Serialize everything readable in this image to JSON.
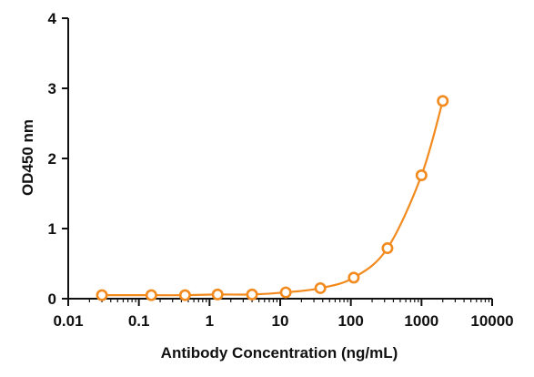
{
  "chart_data": {
    "type": "scatter",
    "title": "",
    "xlabel": "Antibody Concentration (ng/mL)",
    "ylabel": "OD450 nm",
    "xscale": "log",
    "xlim": [
      0.01,
      10000
    ],
    "ylim": [
      0,
      4
    ],
    "xticks": [
      "0.01",
      "0.1",
      "1",
      "10",
      "100",
      "1000",
      "10000"
    ],
    "yticks": [
      "0",
      "1",
      "2",
      "3",
      "4"
    ],
    "grid": false,
    "legend": "none",
    "fitted_curve": true,
    "color": "#f28a1e",
    "series": [
      {
        "x": [
          0.03,
          0.15,
          0.45,
          1.3,
          4.0,
          12,
          37,
          110,
          330,
          1000,
          2000
        ],
        "y": [
          0.05,
          0.05,
          0.05,
          0.06,
          0.06,
          0.09,
          0.15,
          0.3,
          0.72,
          1.76,
          2.82
        ]
      }
    ]
  }
}
